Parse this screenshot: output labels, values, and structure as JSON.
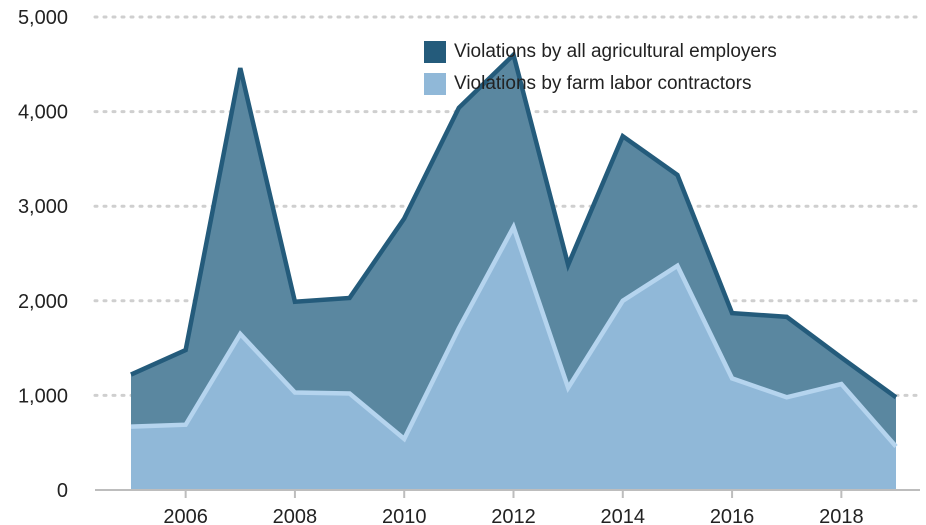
{
  "chart_data": {
    "type": "area",
    "title": "",
    "xlabel": "",
    "ylabel": "",
    "x": [
      2005,
      2006,
      2007,
      2008,
      2009,
      2010,
      2011,
      2012,
      2013,
      2014,
      2015,
      2016,
      2017,
      2018,
      2019
    ],
    "x_ticks": [
      "2006",
      "2008",
      "2010",
      "2012",
      "2014",
      "2016",
      "2018"
    ],
    "y_ticks": [
      "0",
      "1,000",
      "2,000",
      "3,000",
      "4,000",
      "5,000"
    ],
    "ylim": [
      0,
      5000
    ],
    "grid": "horizontal-dotted",
    "legend_position": "top-right",
    "series": [
      {
        "name": "Violations by all agricultural employers",
        "values": [
          1220,
          1480,
          4460,
          1990,
          2030,
          2870,
          4040,
          4600,
          2380,
          3740,
          3330,
          1870,
          1830,
          1400,
          980
        ],
        "color": "#5a87a0",
        "line_color": "#245b7b"
      },
      {
        "name": "Violations by farm labor contractors",
        "values": [
          670,
          690,
          1650,
          1030,
          1020,
          540,
          1710,
          2780,
          1080,
          2000,
          2370,
          1180,
          980,
          1120,
          460
        ],
        "color": "#90b8d8",
        "line_color": "#b5d4ee"
      }
    ]
  }
}
